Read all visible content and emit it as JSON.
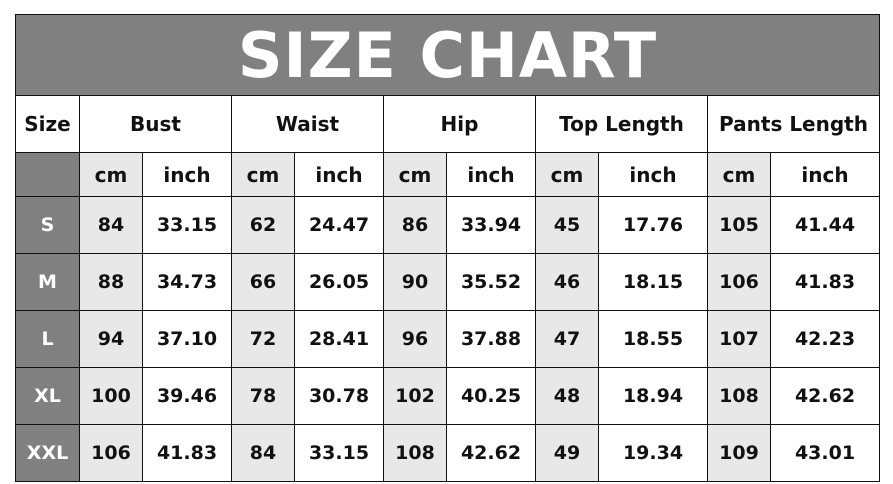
{
  "title": "SIZE CHART",
  "header": {
    "size_label": "Size",
    "groups": [
      "Bust",
      "Waist",
      "Hip",
      "Top Length",
      "Pants Length"
    ],
    "unit_cm": "cm",
    "unit_inch": "inch"
  },
  "colors": {
    "header_bg": "#808080",
    "cm_bg": "#e8e8e8",
    "text_dark": "#111111",
    "text_light": "#ffffff"
  },
  "rows": [
    {
      "size": "S",
      "values": [
        "84",
        "33.15",
        "62",
        "24.47",
        "86",
        "33.94",
        "45",
        "17.76",
        "105",
        "41.44"
      ]
    },
    {
      "size": "M",
      "values": [
        "88",
        "34.73",
        "66",
        "26.05",
        "90",
        "35.52",
        "46",
        "18.15",
        "106",
        "41.83"
      ]
    },
    {
      "size": "L",
      "values": [
        "94",
        "37.10",
        "72",
        "28.41",
        "96",
        "37.88",
        "47",
        "18.55",
        "107",
        "42.23"
      ]
    },
    {
      "size": "XL",
      "values": [
        "100",
        "39.46",
        "78",
        "30.78",
        "102",
        "40.25",
        "48",
        "18.94",
        "108",
        "42.62"
      ]
    },
    {
      "size": "XXL",
      "values": [
        "106",
        "41.83",
        "84",
        "33.15",
        "108",
        "42.62",
        "49",
        "19.34",
        "109",
        "43.01"
      ]
    }
  ]
}
